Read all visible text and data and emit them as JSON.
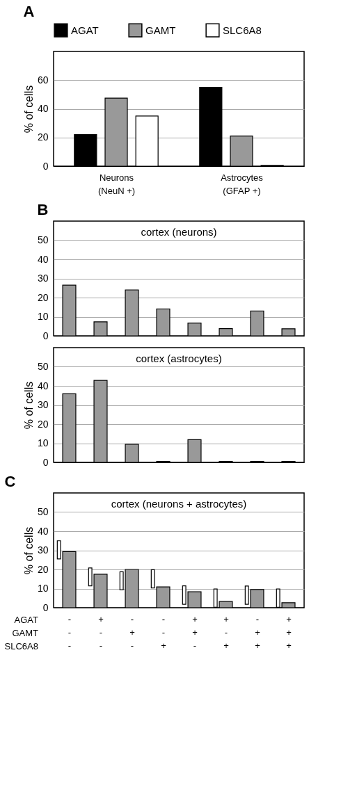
{
  "chart_data": [
    {
      "type": "bar",
      "title": "A",
      "ylabel": "% of cells",
      "categories": [
        "Neurons\n(NeuN +)",
        "Astrocytes\n(GFAP +)"
      ],
      "series": [
        {
          "name": "AGAT",
          "color": "#000000",
          "values": [
            22,
            55
          ]
        },
        {
          "name": "GAMT",
          "color": "#999999",
          "values": [
            47.5,
            21
          ]
        },
        {
          "name": "SLC6A8",
          "color": "#ffffff",
          "values": [
            35,
            0.5
          ]
        }
      ],
      "ylim": [
        0,
        80
      ],
      "yticks": [
        0,
        20,
        40,
        60
      ],
      "grid": "y",
      "legend": "top"
    },
    {
      "type": "bar",
      "title": "B",
      "subtitle": "cortex (neurons)",
      "categories": [
        null,
        null,
        null,
        null,
        null,
        null,
        null,
        null
      ],
      "series": [
        {
          "color": "#999999",
          "values": [
            26.5,
            7.3,
            24,
            14.1,
            6.7,
            3.8,
            13,
            3.7
          ]
        }
      ],
      "ylim": [
        0,
        60
      ],
      "yticks": [
        0,
        10,
        20,
        30,
        40,
        50
      ],
      "grid": "y",
      "tick_labels": "y"
    },
    {
      "type": "bar",
      "subtitle": "cortex (astrocytes)",
      "ylabel": "% of cells",
      "categories": [
        null,
        null,
        null,
        null,
        null,
        null,
        null,
        null
      ],
      "series": [
        {
          "color": "#999999",
          "values": [
            35.9,
            42.9,
            9.5,
            0.5,
            11.9,
            0.5,
            0.5,
            0.5
          ]
        }
      ],
      "ylim": [
        0,
        60
      ],
      "yticks": [
        0,
        10,
        20,
        30,
        40,
        50
      ],
      "grid": "y",
      "tick_labels": "y"
    },
    {
      "type": "bar",
      "title": "C",
      "subtitle": "cortex (neurons + astrocytes)",
      "ylabel": "% of cells",
      "categories": [
        "-\n-\n-",
        "+\n-\n-",
        "-\n+\n-",
        "-\n-\n+",
        "+\n+\n-",
        "+\n-\n+",
        "-\n+\n+",
        "+\n+\n+"
      ],
      "series": [
        {
          "color": "#ffffff",
          "base": [
            25.5,
            11.4,
            9.3,
            10.3,
            1.8,
            0.2,
            1.8,
            0.2
          ],
          "values": [
            9.5,
            9.4,
            9.5,
            9.6,
            9.6,
            9.6,
            9.5,
            9.6
          ]
        },
        {
          "color": "#999999",
          "values": [
            29.3,
            17.5,
            20,
            10.9,
            8.3,
            3.2,
            9.5,
            2.6
          ]
        }
      ],
      "ylim": [
        0,
        60
      ],
      "yticks": [
        0,
        10,
        20,
        30,
        40,
        50
      ],
      "grid": "y",
      "annotations": [
        "AGAT",
        "GAMT",
        "SLC6A8"
      ]
    }
  ]
}
